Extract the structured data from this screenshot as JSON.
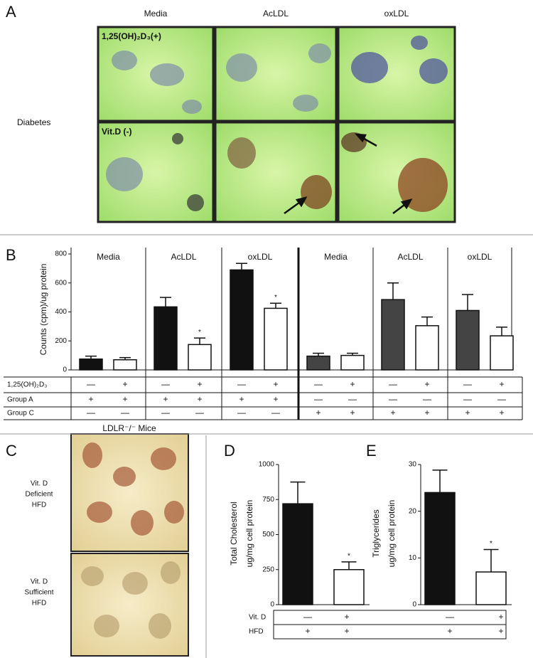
{
  "panel_labels": [
    "A",
    "B",
    "C",
    "D",
    "E"
  ],
  "figure_a": {
    "columns": [
      "Media",
      "AcLDL",
      "oxLDL"
    ],
    "rows": [
      "1,25(OH)₂D₃(+)",
      "Vit.D (-)"
    ],
    "group": "Diabetes"
  },
  "figure_c": {
    "title": "LDLR⁻/⁻ Mice",
    "rows": [
      [
        "Vit. D",
        "Deficient",
        "HFD"
      ],
      [
        "Vit. D",
        "Sufficient",
        "HFD"
      ]
    ]
  },
  "chart_data": [
    {
      "type": "bar",
      "y_label": [
        "Counts (cpm)/ug protein"
      ],
      "categories": [
        "Media",
        "AcLDL",
        "oxLDL",
        "Media",
        "AcLDL",
        "oxLDL"
      ],
      "ylim": [
        0,
        800
      ],
      "yticks": [
        0,
        200,
        400,
        600,
        800
      ],
      "series": [
        {
          "colors": [
            "#111111",
            "#111111",
            "#111111",
            "#444444",
            "#444444",
            "#444444"
          ],
          "values": [
            75,
            435,
            690,
            95,
            485,
            410
          ],
          "errors": [
            20,
            65,
            45,
            20,
            115,
            110
          ]
        },
        {
          "color": "#ffffff",
          "values": [
            70,
            175,
            425,
            100,
            305,
            235
          ],
          "errors": [
            15,
            45,
            35,
            15,
            60,
            60
          ]
        }
      ],
      "annotations": [
        "*",
        "*"
      ]
    },
    {
      "type": "bar",
      "y_label": [
        "Total Cholesterol",
        "ug/mg cell protein"
      ],
      "ylim": [
        0,
        1000
      ],
      "yticks": [
        0,
        250,
        500,
        750,
        1000
      ],
      "series": [
        {
          "color": "#111111",
          "values": [
            720
          ],
          "errors": [
            155
          ]
        },
        {
          "color": "#ffffff",
          "values": [
            250
          ],
          "errors": [
            55
          ]
        }
      ],
      "annotations": [
        "*"
      ]
    },
    {
      "type": "bar",
      "y_label": [
        "Triglycerides",
        "ug/mg cell protein"
      ],
      "ylim": [
        0,
        30
      ],
      "yticks": [
        0,
        10,
        20,
        30
      ],
      "series": [
        {
          "color": "#111111",
          "values": [
            24
          ],
          "errors": [
            4.8
          ]
        },
        {
          "color": "#ffffff",
          "values": [
            7
          ],
          "errors": [
            4.8
          ]
        }
      ],
      "annotations": [
        "*"
      ]
    }
  ],
  "table_b": {
    "rows": [
      {
        "label": "1,25(OH)₂D₃",
        "cells": [
          "—",
          "+",
          "—",
          "+",
          "—",
          "+",
          "—",
          "+",
          "—",
          "+",
          "—",
          "+"
        ]
      },
      {
        "label": "Group A",
        "cells": [
          "+",
          "+",
          "+",
          "+",
          "+",
          "+",
          "—",
          "—",
          "—",
          "—",
          "—",
          "—"
        ]
      },
      {
        "label": "Group C",
        "cells": [
          "—",
          "—",
          "—",
          "—",
          "—",
          "—",
          "+",
          "+",
          "+",
          "+",
          "+",
          "+"
        ]
      }
    ]
  },
  "table_de": {
    "rows": [
      {
        "label": "Vit. D",
        "cells": [
          "—",
          "+",
          "—",
          "+"
        ]
      },
      {
        "label": "HFD",
        "cells": [
          "+",
          "+",
          "+",
          "+"
        ]
      }
    ]
  }
}
